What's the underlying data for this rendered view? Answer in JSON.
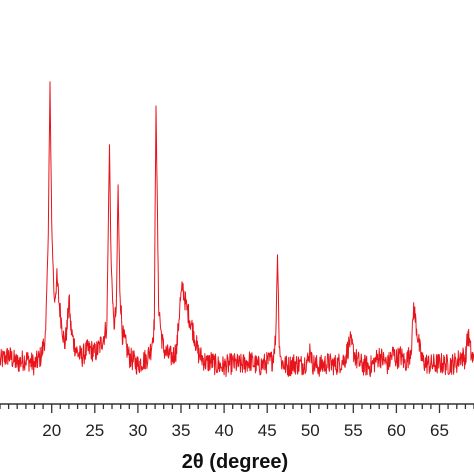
{
  "chart_data": {
    "type": "line",
    "title": "",
    "xlabel": "2θ (degree)",
    "ylabel": "",
    "xlim": [
      14,
      69
    ],
    "x_ticks": [
      20,
      25,
      30,
      35,
      40,
      45,
      50,
      55,
      60,
      65
    ],
    "grid": false,
    "legend": "none",
    "series": [
      {
        "color": "#e8141b",
        "x": [
          14.0,
          15.0,
          16.0,
          17.0,
          18.0,
          18.8,
          19.3,
          19.6,
          19.8,
          20.0,
          20.3,
          20.6,
          20.9,
          21.2,
          21.5,
          21.8,
          22.0,
          22.2,
          22.5,
          23.0,
          23.5,
          24.0,
          24.5,
          25.0,
          25.5,
          26.0,
          26.4,
          26.7,
          26.9,
          27.2,
          27.5,
          27.7,
          27.9,
          28.2,
          28.6,
          29.0,
          29.5,
          30.0,
          30.5,
          31.0,
          31.5,
          31.9,
          32.1,
          32.4,
          32.7,
          33.0,
          33.5,
          34.0,
          34.5,
          34.9,
          35.2,
          35.6,
          36.0,
          36.5,
          37.0,
          37.5,
          38.0,
          38.5,
          39.0,
          40.0,
          41.0,
          42.0,
          43.0,
          44.0,
          45.0,
          45.6,
          46.0,
          46.2,
          46.4,
          46.6,
          47.0,
          47.5,
          48.0,
          49.0,
          49.8,
          50.0,
          50.2,
          51.0,
          52.0,
          53.0,
          54.0,
          54.6,
          55.0,
          55.4,
          56.0,
          57.0,
          57.5,
          58.0,
          59.0,
          59.6,
          60.0,
          60.5,
          61.0,
          61.5,
          61.8,
          62.0,
          62.3,
          62.7,
          63.0,
          63.5,
          64.0,
          65.0,
          66.0,
          67.0,
          67.5,
          68.0,
          68.3,
          68.7,
          69.0
        ],
        "y": [
          255,
          262,
          252,
          258,
          250,
          262,
          290,
          420,
          610,
          430,
          330,
          360,
          325,
          300,
          275,
          300,
          335,
          300,
          280,
          265,
          260,
          268,
          270,
          265,
          272,
          285,
          300,
          530,
          380,
          300,
          320,
          480,
          350,
          290,
          275,
          260,
          255,
          250,
          255,
          258,
          270,
          300,
          585,
          330,
          290,
          270,
          262,
          260,
          270,
          330,
          350,
          325,
          310,
          290,
          265,
          258,
          252,
          255,
          250,
          248,
          252,
          250,
          255,
          248,
          253,
          256,
          285,
          395,
          280,
          255,
          250,
          248,
          252,
          250,
          256,
          275,
          252,
          248,
          252,
          250,
          257,
          280,
          268,
          256,
          250,
          248,
          254,
          262,
          250,
          265,
          258,
          262,
          252,
          262,
          280,
          325,
          300,
          270,
          255,
          252,
          250,
          252,
          250,
          253,
          262,
          258,
          290,
          262,
          255
        ]
      }
    ]
  }
}
